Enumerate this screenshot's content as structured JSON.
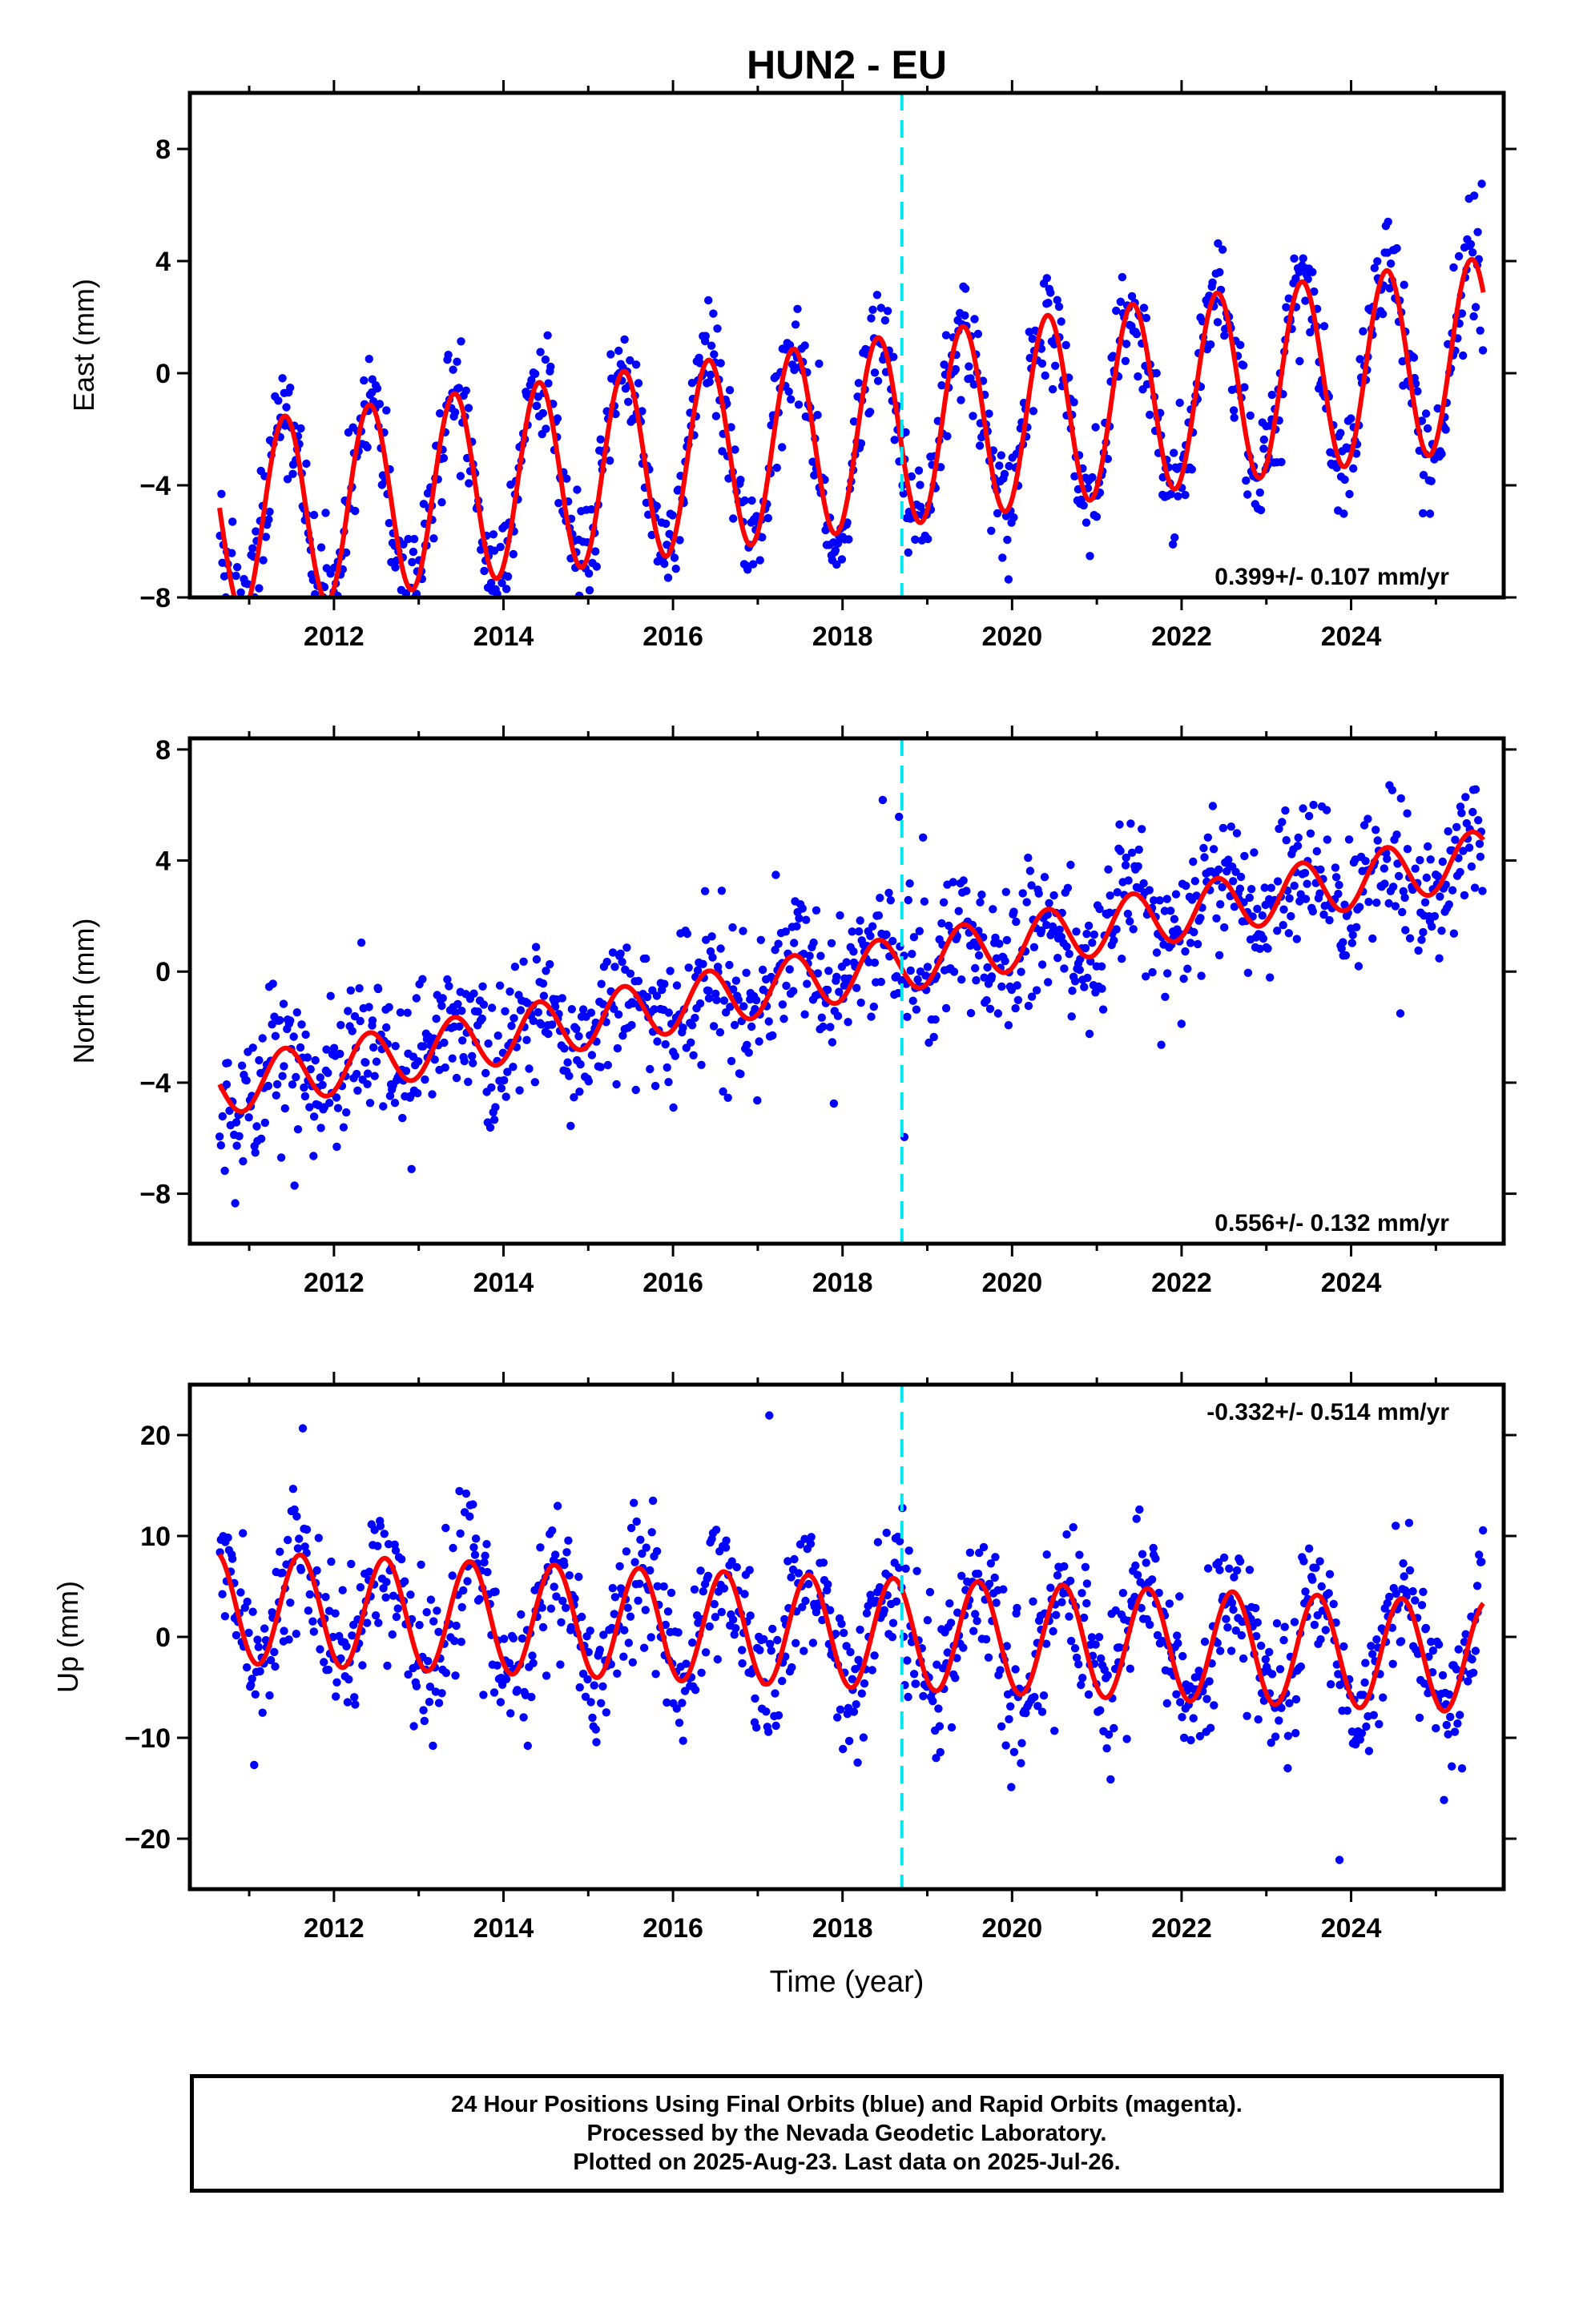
{
  "title": "HUN2 - EU",
  "xlabel": "Time (year)",
  "footer": {
    "line1": "24 Hour Positions Using Final Orbits (blue) and Rapid Orbits (magenta).",
    "line2": "Processed by the Nevada Geodetic Laboratory.",
    "line3": "Plotted on 2025-Aug-23. Last data on 2025-Jul-26."
  },
  "colors": {
    "points": "#0000ff",
    "model": "#ff0000",
    "event_line": "#00e5ee",
    "frame": "#000000"
  },
  "chart_data": [
    {
      "type": "scatter",
      "component": "east",
      "ylabel": "East (mm)",
      "rate_label": "0.399+/- 0.107 mm/yr",
      "xlim": [
        2010.3,
        2025.8
      ],
      "ylim": [
        -8,
        10
      ],
      "x_ticks": [
        2012,
        2014,
        2016,
        2018,
        2020,
        2022,
        2024
      ],
      "x_tick_labels": [
        "2012",
        "2014",
        "2016",
        "2018",
        "2020",
        "2022",
        "2024"
      ],
      "y_ticks": [
        -8,
        -4,
        0,
        4,
        8
      ],
      "y_tick_labels": [
        "−8",
        "−4",
        "0",
        "4",
        "8"
      ],
      "event_x": 2018.7,
      "data_start": 2010.65,
      "data_end": 2025.56,
      "model": {
        "offset": -2.3,
        "trend": 0.399,
        "amplitude": 3.4,
        "peak_phase": 0.42,
        "ref_year": 2018.0
      },
      "scatter_sd": 1.0,
      "n_points": 1100,
      "seed": 11
    },
    {
      "type": "scatter",
      "component": "north",
      "ylabel": "North (mm)",
      "rate_label": "0.556+/- 0.132 mm/yr",
      "xlim": [
        2010.3,
        2025.8
      ],
      "ylim": [
        -9.8,
        8.4
      ],
      "x_ticks": [
        2012,
        2014,
        2016,
        2018,
        2020,
        2022,
        2024
      ],
      "x_tick_labels": [
        "2012",
        "2014",
        "2016",
        "2018",
        "2020",
        "2022",
        "2024"
      ],
      "y_ticks": [
        -8,
        -4,
        0,
        4,
        8
      ],
      "y_tick_labels": [
        "−8",
        "−4",
        "0",
        "4",
        "8"
      ],
      "event_x": 2018.7,
      "data_start": 2010.65,
      "data_end": 2025.56,
      "model": {
        "offset": -0.1,
        "trend": 0.556,
        "amplitude": 1.0,
        "peak_phase": 0.42,
        "ref_year": 2018.0
      },
      "scatter_sd": 1.2,
      "n_points": 1100,
      "seed": 23
    },
    {
      "type": "scatter",
      "component": "up",
      "ylabel": "Up (mm)",
      "rate_label": "-0.332+/- 0.514 mm/yr",
      "xlim": [
        2010.3,
        2025.8
      ],
      "ylim": [
        -25,
        25
      ],
      "x_ticks": [
        2012,
        2014,
        2016,
        2018,
        2020,
        2022,
        2024
      ],
      "x_tick_labels": [
        "2012",
        "2014",
        "2016",
        "2018",
        "2020",
        "2022",
        "2024"
      ],
      "y_ticks": [
        -20,
        -10,
        0,
        10,
        20
      ],
      "y_tick_labels": [
        "−20",
        "−10",
        "0",
        "10",
        "20"
      ],
      "event_x": 2018.7,
      "data_start": 2010.65,
      "data_end": 2025.56,
      "model": {
        "offset": 0.5,
        "trend": -0.332,
        "amplitude": 5.5,
        "peak_phase": 0.6,
        "ref_year": 2018.0
      },
      "scatter_sd": 3.6,
      "n_points": 1100,
      "seed": 37
    }
  ]
}
